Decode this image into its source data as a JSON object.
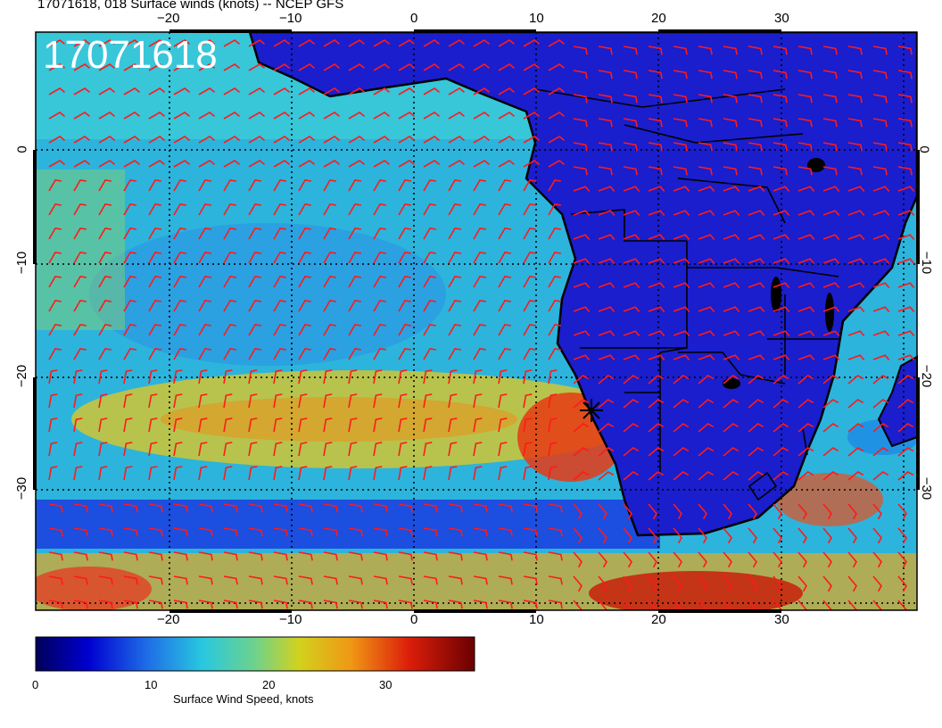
{
  "title": "17071618, 018 Surface winds (knots) -- NCEP GFS",
  "timestamp": "17071618",
  "lon_ticks": [
    "−20",
    "−10",
    "0",
    "10",
    "20",
    "30"
  ],
  "lat_ticks": [
    "0",
    "−10",
    "−20",
    "−30"
  ],
  "colorbar": {
    "label": "Surface Wind Speed, knots",
    "ticks": [
      "0",
      "10",
      "20",
      "30"
    ],
    "range": [
      0,
      38
    ],
    "colors": [
      "#00005a",
      "#0000c8",
      "#1e5ae6",
      "#28b4e6",
      "#1ed2c8",
      "#9ed250",
      "#e6d21e",
      "#f08c14",
      "#dc1e0a",
      "#8c0000"
    ]
  },
  "colors": {
    "land": "#1a1ecc",
    "barbs": "#ff1a1a",
    "ocean_low": "#2a4fe0",
    "ocean_mid": "#2cc0dc",
    "ocean_high": "#e8c01a"
  }
}
